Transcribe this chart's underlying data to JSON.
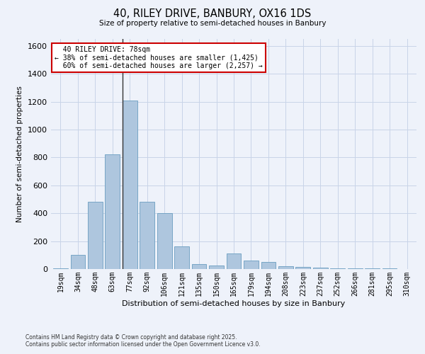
{
  "title": "40, RILEY DRIVE, BANBURY, OX16 1DS",
  "subtitle": "Size of property relative to semi-detached houses in Banbury",
  "xlabel": "Distribution of semi-detached houses by size in Banbury",
  "ylabel": "Number of semi-detached properties",
  "categories": [
    "19sqm",
    "34sqm",
    "48sqm",
    "63sqm",
    "77sqm",
    "92sqm",
    "106sqm",
    "121sqm",
    "135sqm",
    "150sqm",
    "165sqm",
    "179sqm",
    "194sqm",
    "208sqm",
    "223sqm",
    "237sqm",
    "252sqm",
    "266sqm",
    "281sqm",
    "295sqm",
    "310sqm"
  ],
  "values": [
    5,
    100,
    480,
    820,
    1210,
    480,
    400,
    160,
    35,
    25,
    110,
    60,
    50,
    20,
    15,
    10,
    5,
    5,
    4,
    3,
    2
  ],
  "bar_color": "#aec6de",
  "bar_edge_color": "#6a9ec0",
  "property_label": "40 RILEY DRIVE: 78sqm",
  "pct_smaller": 38,
  "count_smaller": 1425,
  "pct_larger": 60,
  "count_larger": 2257,
  "vline_bar_index": 4,
  "annotation_box_edgecolor": "#cc0000",
  "background_color": "#eef2fa",
  "grid_color": "#c8d4e8",
  "ylim": [
    0,
    1650
  ],
  "yticks": [
    0,
    200,
    400,
    600,
    800,
    1000,
    1200,
    1400,
    1600
  ],
  "footer_line1": "Contains HM Land Registry data © Crown copyright and database right 2025.",
  "footer_line2": "Contains public sector information licensed under the Open Government Licence v3.0."
}
